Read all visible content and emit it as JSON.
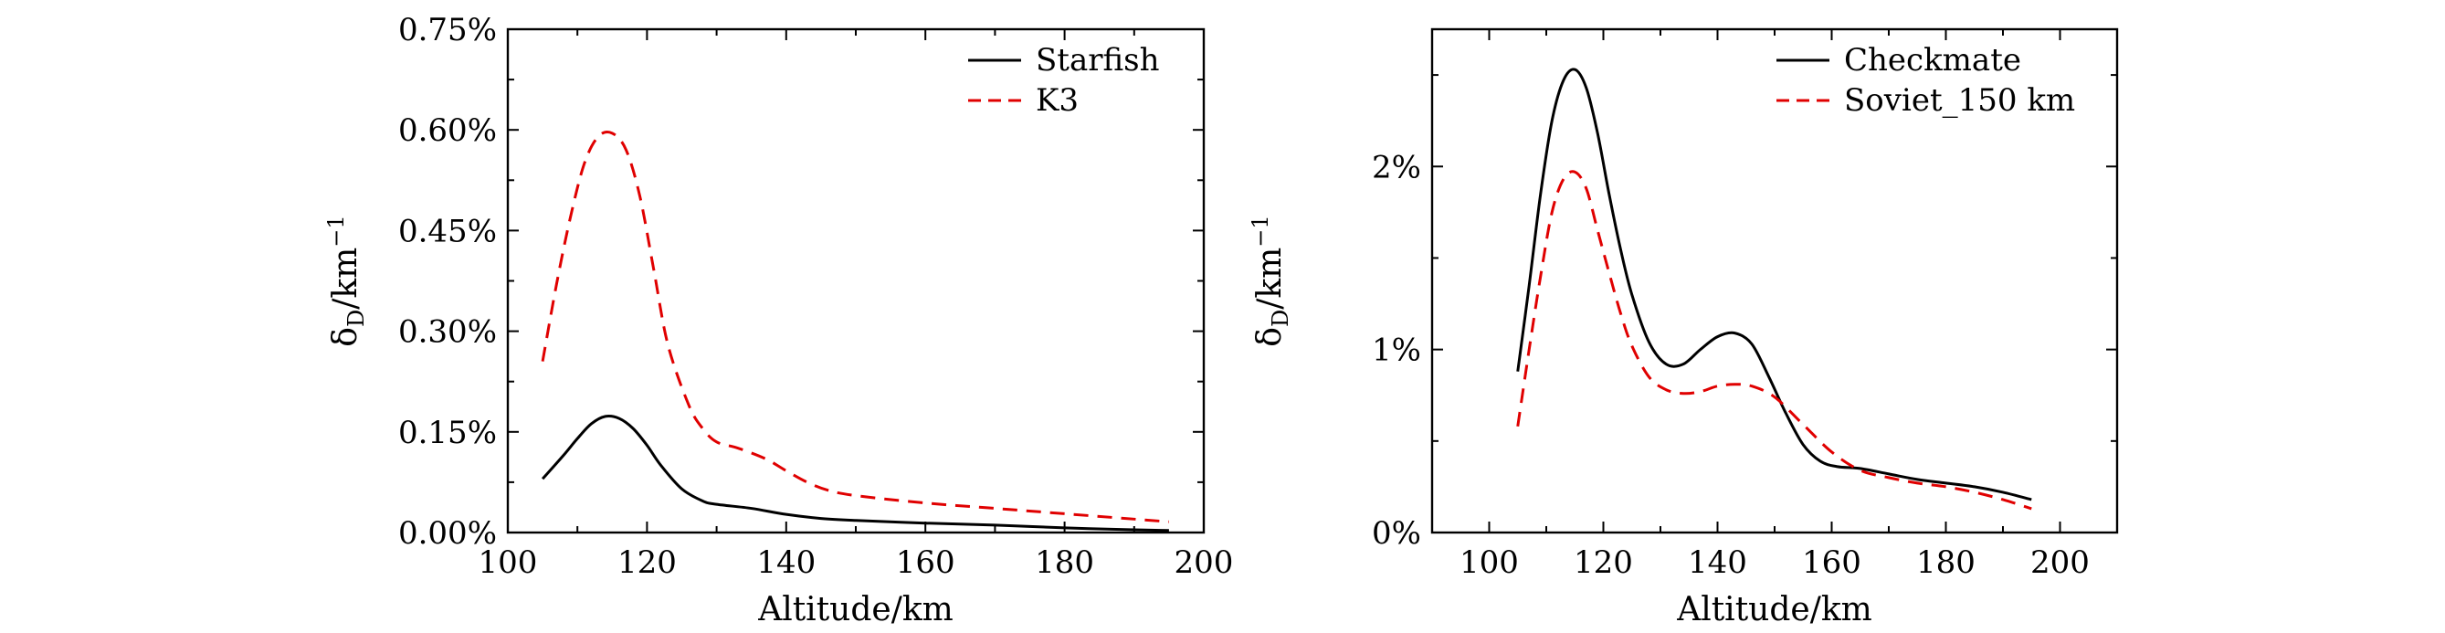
{
  "chart_data": [
    {
      "type": "line",
      "title": "",
      "xlabel": "Altitude/km",
      "ylabel": "δD/km−1",
      "ylabel_main": "δ",
      "ylabel_sub": "D",
      "ylabel_unit": "/km",
      "ylabel_sup": "−1",
      "xlim": [
        100,
        200
      ],
      "ylim": [
        0,
        0.75
      ],
      "xticks": [
        100,
        120,
        140,
        160,
        180,
        200
      ],
      "xtick_labels": [
        "100",
        "120",
        "140",
        "160",
        "180",
        "200"
      ],
      "yticks": [
        0,
        0.15,
        0.3,
        0.45,
        0.6,
        0.75
      ],
      "ytick_labels": [
        "0.00%",
        "0.15%",
        "0.30%",
        "0.45%",
        "0.60%",
        "0.75%"
      ],
      "legend_position": "top-right",
      "series": [
        {
          "name": "Starfish",
          "style": "solid",
          "color": "#000000",
          "x": [
            105,
            108,
            110,
            112,
            114,
            116,
            118,
            120,
            122,
            125,
            128,
            130,
            135,
            140,
            145,
            150,
            160,
            170,
            180,
            190,
            195
          ],
          "y": [
            0.08,
            0.115,
            0.14,
            0.162,
            0.173,
            0.17,
            0.155,
            0.13,
            0.1,
            0.065,
            0.047,
            0.042,
            0.036,
            0.027,
            0.021,
            0.018,
            0.014,
            0.011,
            0.007,
            0.004,
            0.003
          ]
        },
        {
          "name": "K3",
          "style": "dashed",
          "color": "#e00000",
          "x": [
            105,
            107,
            109,
            111,
            113,
            115,
            117,
            119,
            121,
            123,
            126,
            128,
            130,
            133,
            137,
            140,
            143,
            146,
            150,
            160,
            170,
            180,
            190,
            195
          ],
          "y": [
            0.255,
            0.37,
            0.47,
            0.55,
            0.59,
            0.595,
            0.57,
            0.5,
            0.39,
            0.28,
            0.19,
            0.155,
            0.135,
            0.126,
            0.11,
            0.092,
            0.075,
            0.063,
            0.055,
            0.044,
            0.036,
            0.028,
            0.02,
            0.016
          ]
        }
      ]
    },
    {
      "type": "line",
      "title": "",
      "xlabel": "Altitude/km",
      "ylabel": "δD/km−1",
      "ylabel_main": "δ",
      "ylabel_sub": "D",
      "ylabel_unit": "/km",
      "ylabel_sup": "−1",
      "xlim": [
        90,
        210
      ],
      "ylim": [
        0,
        2.75
      ],
      "xticks": [
        100,
        120,
        140,
        160,
        180,
        200
      ],
      "xtick_labels": [
        "100",
        "120",
        "140",
        "160",
        "180",
        "200"
      ],
      "yticks": [
        0,
        1,
        2
      ],
      "ytick_labels": [
        "0%",
        "1%",
        "2%"
      ],
      "legend_position": "top-right",
      "series": [
        {
          "name": "Checkmate",
          "style": "solid",
          "color": "#000000",
          "x": [
            105,
            107,
            109,
            111,
            113,
            115,
            117,
            119,
            121,
            123,
            125,
            128,
            131,
            134,
            137,
            140,
            143,
            146,
            149,
            152,
            155,
            158,
            161,
            165,
            170,
            175,
            180,
            185,
            190,
            195
          ],
          "y": [
            0.88,
            1.35,
            1.85,
            2.25,
            2.47,
            2.53,
            2.43,
            2.18,
            1.85,
            1.55,
            1.3,
            1.04,
            0.92,
            0.92,
            1.0,
            1.07,
            1.09,
            1.03,
            0.85,
            0.65,
            0.48,
            0.39,
            0.36,
            0.35,
            0.32,
            0.29,
            0.27,
            0.25,
            0.22,
            0.18
          ]
        },
        {
          "name": "Soviet_150 km",
          "style": "dashed",
          "color": "#e00000",
          "x": [
            105,
            107,
            109,
            111,
            113,
            115,
            117,
            119,
            121,
            123,
            125,
            128,
            131,
            134,
            137,
            140,
            143,
            146,
            150,
            155,
            160,
            165,
            170,
            175,
            180,
            185,
            190,
            195
          ],
          "y": [
            0.58,
            1.0,
            1.4,
            1.75,
            1.93,
            1.97,
            1.88,
            1.65,
            1.42,
            1.2,
            1.02,
            0.85,
            0.78,
            0.76,
            0.77,
            0.8,
            0.81,
            0.8,
            0.74,
            0.59,
            0.44,
            0.34,
            0.3,
            0.27,
            0.25,
            0.22,
            0.18,
            0.13
          ]
        }
      ]
    }
  ]
}
